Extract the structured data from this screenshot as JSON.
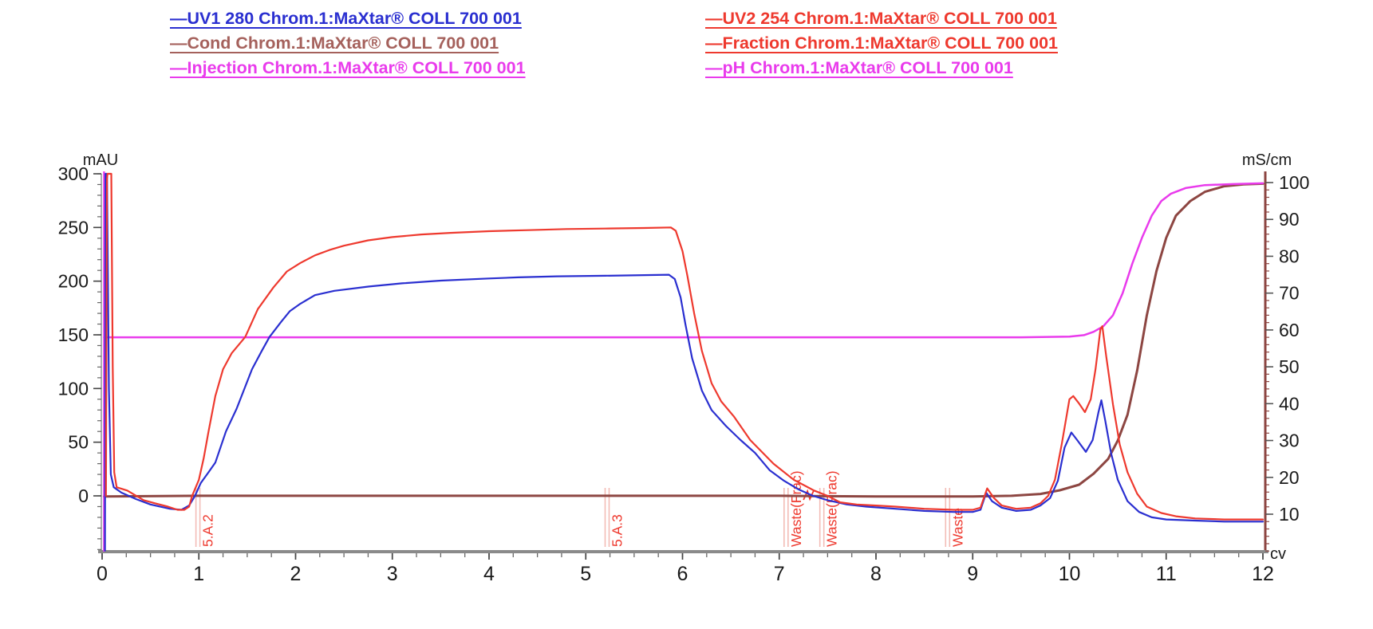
{
  "legend": {
    "items": [
      {
        "id": "uv1_280",
        "label": "—UV1 280 Chrom.1:MaXtar® COLL 700 001",
        "color": "#2a2fd0",
        "column": "left"
      },
      {
        "id": "cond",
        "label": "—Cond Chrom.1:MaXtar® COLL 700 001",
        "color": "#a5615c",
        "column": "left"
      },
      {
        "id": "injection",
        "label": "—Injection Chrom.1:MaXtar® COLL 700 001",
        "color": "#e93bec",
        "column": "left"
      },
      {
        "id": "uv2_254",
        "label": "—UV2 254 Chrom.1:MaXtar® COLL 700 001",
        "color": "#ee392e",
        "column": "right"
      },
      {
        "id": "fraction",
        "label": "—Fraction Chrom.1:MaXtar® COLL 700 001",
        "color": "#ee392e",
        "column": "right"
      },
      {
        "id": "ph",
        "label": "—pH Chrom.1:MaXtar® COLL 700 001",
        "color": "#e93bec",
        "column": "right"
      }
    ]
  },
  "chart_data": {
    "type": "line",
    "x_axis": {
      "label": "cv",
      "min": 0,
      "max": 12,
      "ticks": [
        0,
        1,
        2,
        3,
        4,
        5,
        6,
        7,
        8,
        9,
        10,
        11,
        12
      ],
      "minor_step": 0.25
    },
    "left_axis": {
      "label": "mAU",
      "min": -51,
      "max": 300,
      "ticks": [
        0,
        50,
        100,
        150,
        200,
        250,
        300
      ],
      "minor_step": 10,
      "minor_min": -50
    },
    "right_axis": {
      "label": "mS/cm",
      "min": -0.2,
      "max": 103,
      "ticks": [
        10,
        20,
        30,
        40,
        50,
        60,
        70,
        80,
        90,
        100
      ],
      "minor_step": 2,
      "minor_min": 0
    },
    "grid": false,
    "legend_position": "top",
    "series": [
      {
        "name": "Cond",
        "axis": "right",
        "color": "#8d4642",
        "width": 3,
        "points": [
          [
            0.02,
            14.8
          ],
          [
            1,
            15
          ],
          [
            3,
            15
          ],
          [
            5,
            15
          ],
          [
            7,
            15
          ],
          [
            8,
            14.8
          ],
          [
            9,
            14.8
          ],
          [
            9.4,
            15
          ],
          [
            9.7,
            15.5
          ],
          [
            9.9,
            16.5
          ],
          [
            10.1,
            18
          ],
          [
            10.25,
            21
          ],
          [
            10.4,
            25
          ],
          [
            10.5,
            30
          ],
          [
            10.6,
            37
          ],
          [
            10.7,
            49
          ],
          [
            10.8,
            64
          ],
          [
            10.9,
            76
          ],
          [
            11.0,
            85
          ],
          [
            11.1,
            91
          ],
          [
            11.25,
            95
          ],
          [
            11.4,
            97.5
          ],
          [
            11.6,
            99
          ],
          [
            11.8,
            99.5
          ],
          [
            12,
            99.7
          ]
        ]
      },
      {
        "name": "pH",
        "axis": "right",
        "color": "#e93bec",
        "width": 2.5,
        "points": [
          [
            0.02,
            58
          ],
          [
            2,
            58
          ],
          [
            4,
            58
          ],
          [
            6,
            58
          ],
          [
            8,
            58
          ],
          [
            9.5,
            58
          ],
          [
            10.0,
            58.2
          ],
          [
            10.15,
            58.6
          ],
          [
            10.25,
            59.5
          ],
          [
            10.35,
            61
          ],
          [
            10.45,
            64
          ],
          [
            10.55,
            70
          ],
          [
            10.65,
            78
          ],
          [
            10.75,
            85
          ],
          [
            10.85,
            91
          ],
          [
            10.95,
            95
          ],
          [
            11.05,
            97
          ],
          [
            11.2,
            98.5
          ],
          [
            11.4,
            99.3
          ],
          [
            11.7,
            99.6
          ],
          [
            12,
            99.8
          ]
        ]
      },
      {
        "name": "UV1 280",
        "axis": "left",
        "color": "#2a2fd0",
        "width": 2.2,
        "points": [
          [
            0.03,
            -51
          ],
          [
            0.035,
            300
          ],
          [
            0.05,
            300
          ],
          [
            0.07,
            100
          ],
          [
            0.09,
            20
          ],
          [
            0.12,
            8
          ],
          [
            0.2,
            3
          ],
          [
            0.35,
            -3
          ],
          [
            0.5,
            -8
          ],
          [
            0.7,
            -12
          ],
          [
            0.82,
            -13
          ],
          [
            0.9,
            -9
          ],
          [
            0.96,
            0
          ],
          [
            1.02,
            12
          ],
          [
            1.1,
            22
          ],
          [
            1.17,
            31
          ],
          [
            1.28,
            60
          ],
          [
            1.39,
            81
          ],
          [
            1.55,
            118
          ],
          [
            1.65,
            135
          ],
          [
            1.73,
            148
          ],
          [
            1.85,
            162
          ],
          [
            1.94,
            172
          ],
          [
            2.05,
            179
          ],
          [
            2.2,
            187
          ],
          [
            2.4,
            191
          ],
          [
            2.76,
            195
          ],
          [
            3.1,
            198
          ],
          [
            3.5,
            200.5
          ],
          [
            4.0,
            202.5
          ],
          [
            4.3,
            203.5
          ],
          [
            4.7,
            204.5
          ],
          [
            5.2,
            205
          ],
          [
            5.86,
            206
          ],
          [
            5.92,
            202
          ],
          [
            5.98,
            185
          ],
          [
            6.03,
            160
          ],
          [
            6.1,
            128
          ],
          [
            6.2,
            98
          ],
          [
            6.3,
            80
          ],
          [
            6.45,
            65
          ],
          [
            6.6,
            52
          ],
          [
            6.75,
            40
          ],
          [
            6.9,
            24
          ],
          [
            7.05,
            14
          ],
          [
            7.2,
            6
          ],
          [
            7.35,
            0
          ],
          [
            7.5,
            -4
          ],
          [
            7.7,
            -8
          ],
          [
            7.9,
            -10
          ],
          [
            8.2,
            -12
          ],
          [
            8.5,
            -14
          ],
          [
            8.8,
            -15
          ],
          [
            9.0,
            -15
          ],
          [
            9.08,
            -13
          ],
          [
            9.14,
            3
          ],
          [
            9.2,
            -5
          ],
          [
            9.3,
            -11
          ],
          [
            9.45,
            -14
          ],
          [
            9.6,
            -13
          ],
          [
            9.7,
            -9
          ],
          [
            9.8,
            -2
          ],
          [
            9.88,
            14
          ],
          [
            9.95,
            45
          ],
          [
            10.02,
            59
          ],
          [
            10.08,
            52
          ],
          [
            10.17,
            41
          ],
          [
            10.24,
            52
          ],
          [
            10.3,
            78
          ],
          [
            10.33,
            89
          ],
          [
            10.37,
            70
          ],
          [
            10.43,
            40
          ],
          [
            10.5,
            15
          ],
          [
            10.6,
            -5
          ],
          [
            10.72,
            -15
          ],
          [
            10.85,
            -20
          ],
          [
            11.0,
            -22
          ],
          [
            11.3,
            -23
          ],
          [
            11.6,
            -24
          ],
          [
            12,
            -24
          ]
        ]
      },
      {
        "name": "UV2 254",
        "axis": "left",
        "color": "#ee392e",
        "width": 2.2,
        "points": [
          [
            0.04,
            0
          ],
          [
            0.05,
            295
          ],
          [
            0.055,
            300
          ],
          [
            0.095,
            300
          ],
          [
            0.11,
            120
          ],
          [
            0.125,
            22
          ],
          [
            0.15,
            8
          ],
          [
            0.26,
            5
          ],
          [
            0.43,
            -4
          ],
          [
            0.55,
            -7
          ],
          [
            0.68,
            -10
          ],
          [
            0.78,
            -13
          ],
          [
            0.85,
            -13
          ],
          [
            0.9,
            -10
          ],
          [
            0.93,
            0
          ],
          [
            1.0,
            15
          ],
          [
            1.05,
            35
          ],
          [
            1.1,
            60
          ],
          [
            1.17,
            93
          ],
          [
            1.25,
            118
          ],
          [
            1.34,
            133
          ],
          [
            1.48,
            148
          ],
          [
            1.61,
            174
          ],
          [
            1.77,
            194
          ],
          [
            1.91,
            209
          ],
          [
            2.05,
            217
          ],
          [
            2.2,
            224
          ],
          [
            2.35,
            229
          ],
          [
            2.5,
            233
          ],
          [
            2.75,
            238
          ],
          [
            3.0,
            241
          ],
          [
            3.3,
            243.5
          ],
          [
            3.6,
            245
          ],
          [
            4.0,
            246.5
          ],
          [
            4.4,
            247.5
          ],
          [
            4.8,
            248.5
          ],
          [
            5.2,
            249
          ],
          [
            5.6,
            249.5
          ],
          [
            5.88,
            250
          ],
          [
            5.93,
            247
          ],
          [
            6.0,
            228
          ],
          [
            6.05,
            205
          ],
          [
            6.12,
            170
          ],
          [
            6.2,
            135
          ],
          [
            6.3,
            105
          ],
          [
            6.4,
            88
          ],
          [
            6.53,
            74
          ],
          [
            6.7,
            52
          ],
          [
            6.94,
            30
          ],
          [
            7.15,
            15
          ],
          [
            7.36,
            5
          ],
          [
            7.5,
            0
          ],
          [
            7.63,
            -6
          ],
          [
            7.8,
            -8
          ],
          [
            8.0,
            -9
          ],
          [
            8.2,
            -10
          ],
          [
            8.5,
            -12
          ],
          [
            8.8,
            -13
          ],
          [
            9.0,
            -13
          ],
          [
            9.08,
            -11
          ],
          [
            9.15,
            7
          ],
          [
            9.22,
            -2
          ],
          [
            9.3,
            -9
          ],
          [
            9.45,
            -12
          ],
          [
            9.6,
            -11
          ],
          [
            9.7,
            -7
          ],
          [
            9.78,
            0
          ],
          [
            9.85,
            15
          ],
          [
            9.92,
            48
          ],
          [
            10.0,
            90
          ],
          [
            10.04,
            93
          ],
          [
            10.1,
            86
          ],
          [
            10.16,
            78
          ],
          [
            10.22,
            90
          ],
          [
            10.27,
            118
          ],
          [
            10.32,
            155
          ],
          [
            10.34,
            158
          ],
          [
            10.38,
            130
          ],
          [
            10.45,
            85
          ],
          [
            10.52,
            48
          ],
          [
            10.6,
            22
          ],
          [
            10.7,
            2
          ],
          [
            10.8,
            -10
          ],
          [
            10.95,
            -16
          ],
          [
            11.1,
            -19
          ],
          [
            11.3,
            -21
          ],
          [
            11.6,
            -22
          ],
          [
            12,
            -22
          ]
        ]
      }
    ],
    "injection_marks": [
      {
        "x": 0.02,
        "color": "#e93bec"
      }
    ],
    "fraction_marks": {
      "color": "#ee392e",
      "line_color": "#f3bcb6",
      "events": [
        {
          "label": "5.A.2",
          "x": 0.97
        },
        {
          "label": "5.A.3",
          "x": 5.2
        },
        {
          "label": "Waste(Frac)",
          "x": 7.05
        },
        {
          "label": "Waste(Frac)",
          "x": 7.42
        },
        {
          "label": "Waste",
          "x": 8.72
        }
      ],
      "squiggle_x": 7.3
    }
  }
}
